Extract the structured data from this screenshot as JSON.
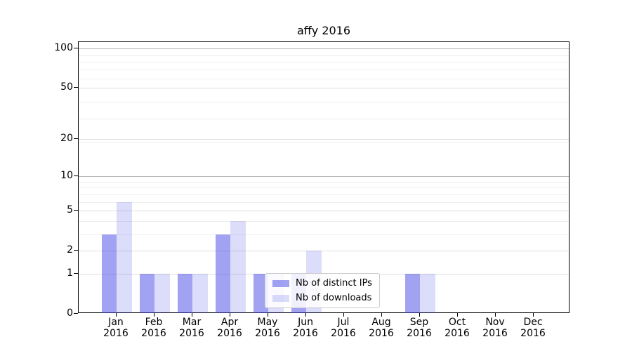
{
  "title": "affy 2016",
  "chart_data": {
    "type": "bar",
    "title": "affy 2016",
    "categories": [
      "Jan 2016",
      "Feb 2016",
      "Mar 2016",
      "Apr 2016",
      "May 2016",
      "Jun 2016",
      "Jul 2016",
      "Aug 2016",
      "Sep 2016",
      "Oct 2016",
      "Nov 2016",
      "Dec 2016"
    ],
    "series": [
      {
        "name": "Nb of distinct IPs",
        "values": [
          3,
          1,
          1,
          3,
          1,
          1,
          0,
          0,
          1,
          0,
          0,
          0
        ],
        "color": "rgba(70,70,232,0.50)"
      },
      {
        "name": "Nb of downloads",
        "values": [
          6,
          1,
          1,
          4,
          1,
          2,
          0,
          0,
          1,
          0,
          0,
          0
        ],
        "color": "rgba(70,70,232,0.19)"
      }
    ],
    "xlabel": "",
    "ylabel": "",
    "yscale": "log1p",
    "ylim": [
      0,
      111
    ],
    "yticks": [
      0,
      1,
      2,
      5,
      10,
      20,
      50,
      100
    ],
    "yticks_emphasized": [
      10,
      100
    ],
    "yticks_minor": [
      3,
      4,
      6,
      7,
      8,
      9,
      19,
      29,
      39,
      59,
      69,
      79,
      89
    ],
    "grid": "horizontal",
    "legend_position": "lower center",
    "bar_grouping": "paired per month, IPs left / downloads right"
  },
  "colors": {
    "bar_distinct_ips": "#a3a3f2",
    "bar_downloads": "#dedefa",
    "grid_major_emphasized": "#b5b5b5",
    "grid_major": "#dddddd",
    "grid_minor": "#eeeeee",
    "axis": "#000000"
  }
}
